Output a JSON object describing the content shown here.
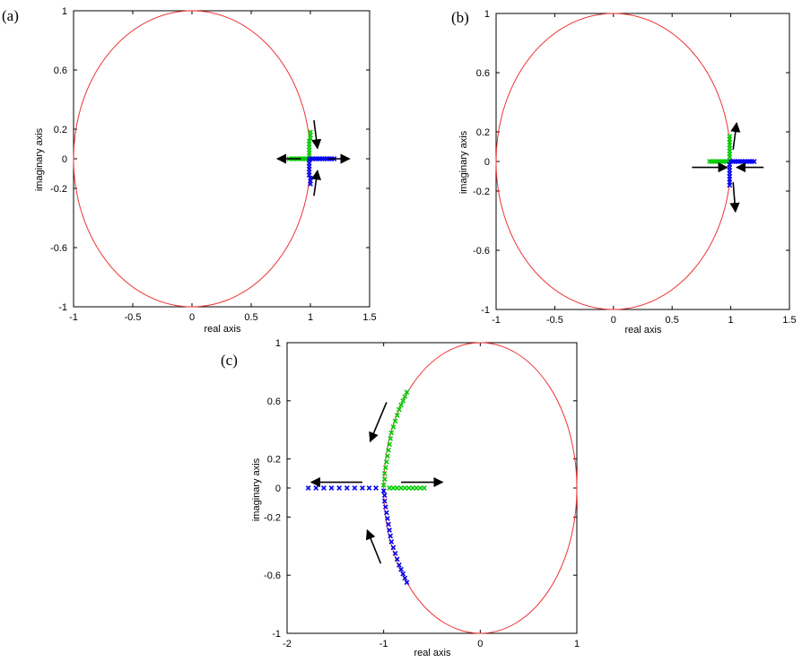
{
  "chart_data": [
    {
      "type": "scatter",
      "panel_label": "(a)",
      "xlabel": "real axis",
      "ylabel": "imaginary axis",
      "xlim": [
        -1,
        1.5
      ],
      "ylim": [
        -1,
        1
      ],
      "xticks": [
        -1,
        -0.5,
        0,
        0.5,
        1,
        1.5
      ],
      "xtick_labels": [
        "-1",
        "-0.5",
        "0",
        "0.5",
        "1",
        "1.5"
      ],
      "yticks": [
        1,
        0.6,
        0.2,
        0,
        -0.2,
        -0.6,
        -1
      ],
      "ytick_labels": [
        "1",
        "0.6",
        "0.2",
        "0",
        "-0.2",
        "-0.6",
        "-1"
      ],
      "unit_circle": true,
      "series": [
        {
          "color": "#00cc00",
          "marker": "x",
          "points": [
            [
              1.0,
              0.18
            ],
            [
              1.0,
              0.16
            ],
            [
              1.0,
              0.14
            ],
            [
              0.99,
              0.12
            ],
            [
              0.99,
              0.1
            ],
            [
              0.99,
              0.08
            ],
            [
              0.99,
              0.06
            ],
            [
              0.99,
              0.04
            ],
            [
              0.99,
              0.02
            ],
            [
              0.98,
              0.0
            ],
            [
              0.96,
              0.0
            ],
            [
              0.94,
              0.0
            ],
            [
              0.92,
              0.0
            ],
            [
              0.9,
              0.0
            ],
            [
              0.88,
              0.0
            ],
            [
              0.86,
              0.0
            ],
            [
              0.84,
              0.0
            ],
            [
              0.82,
              0.0
            ]
          ]
        },
        {
          "color": "#0000ee",
          "marker": "x",
          "points": [
            [
              1.0,
              -0.17
            ],
            [
              1.0,
              -0.15
            ],
            [
              1.0,
              -0.13
            ],
            [
              0.99,
              -0.11
            ],
            [
              0.99,
              -0.09
            ],
            [
              0.99,
              -0.07
            ],
            [
              0.99,
              -0.05
            ],
            [
              0.99,
              -0.03
            ],
            [
              0.99,
              -0.01
            ],
            [
              1.0,
              0.0
            ],
            [
              1.02,
              0.0
            ],
            [
              1.04,
              0.0
            ],
            [
              1.06,
              0.0
            ],
            [
              1.08,
              0.0
            ],
            [
              1.1,
              0.0
            ],
            [
              1.12,
              0.0
            ],
            [
              1.14,
              0.0
            ],
            [
              1.16,
              0.0
            ],
            [
              1.18,
              0.0
            ],
            [
              1.2,
              0.0
            ]
          ]
        }
      ],
      "arrows": [
        {
          "from": [
            1.03,
            0.26
          ],
          "to": [
            1.06,
            0.07
          ]
        },
        {
          "from": [
            1.03,
            -0.25
          ],
          "to": [
            1.06,
            -0.08
          ]
        },
        {
          "from": [
            0.92,
            0.0
          ],
          "to": [
            0.72,
            0.0
          ]
        },
        {
          "from": [
            1.15,
            0.0
          ],
          "to": [
            1.33,
            0.0
          ]
        }
      ]
    },
    {
      "type": "scatter",
      "panel_label": "(b)",
      "xlabel": "real axis",
      "ylabel": "imaginary axis",
      "xlim": [
        -1,
        1.5
      ],
      "ylim": [
        -1,
        1
      ],
      "xticks": [
        -1,
        -0.5,
        0,
        0.5,
        1,
        1.5
      ],
      "xtick_labels": [
        "-1",
        "-0.5",
        "0",
        "0.5",
        "1",
        "1.5"
      ],
      "yticks": [
        1,
        0.6,
        0.2,
        0,
        -0.2,
        -0.6,
        -1
      ],
      "ytick_labels": [
        "1",
        "0.6",
        "0.2",
        "0",
        "-0.2",
        "-0.6",
        "-1"
      ],
      "unit_circle": true,
      "series": [
        {
          "color": "#00cc00",
          "marker": "x",
          "points": [
            [
              0.99,
              0.17
            ],
            [
              0.99,
              0.15
            ],
            [
              0.99,
              0.13
            ],
            [
              0.99,
              0.11
            ],
            [
              0.99,
              0.09
            ],
            [
              0.99,
              0.07
            ],
            [
              0.99,
              0.05
            ],
            [
              0.99,
              0.03
            ],
            [
              0.98,
              0.0
            ],
            [
              0.96,
              0.0
            ],
            [
              0.94,
              0.0
            ],
            [
              0.92,
              0.0
            ],
            [
              0.9,
              0.0
            ],
            [
              0.88,
              0.0
            ],
            [
              0.86,
              0.0
            ],
            [
              0.84,
              0.0
            ],
            [
              0.82,
              0.0
            ]
          ]
        },
        {
          "color": "#0000ee",
          "marker": "x",
          "points": [
            [
              0.99,
              -0.16
            ],
            [
              0.99,
              -0.14
            ],
            [
              0.99,
              -0.12
            ],
            [
              0.99,
              -0.1
            ],
            [
              0.99,
              -0.08
            ],
            [
              0.99,
              -0.06
            ],
            [
              0.99,
              -0.04
            ],
            [
              0.99,
              -0.02
            ],
            [
              1.0,
              0.0
            ],
            [
              1.02,
              0.0
            ],
            [
              1.04,
              0.0
            ],
            [
              1.06,
              0.0
            ],
            [
              1.08,
              0.0
            ],
            [
              1.1,
              0.0
            ],
            [
              1.12,
              0.0
            ],
            [
              1.14,
              0.0
            ],
            [
              1.16,
              0.0
            ],
            [
              1.18,
              0.0
            ],
            [
              1.2,
              0.0
            ]
          ]
        }
      ],
      "arrows": [
        {
          "from": [
            1.02,
            0.08
          ],
          "to": [
            1.05,
            0.26
          ]
        },
        {
          "from": [
            1.02,
            -0.14
          ],
          "to": [
            1.04,
            -0.34
          ]
        },
        {
          "from": [
            0.67,
            -0.04
          ],
          "to": [
            0.97,
            -0.04
          ]
        },
        {
          "from": [
            1.28,
            -0.04
          ],
          "to": [
            1.05,
            -0.04
          ]
        }
      ]
    },
    {
      "type": "scatter",
      "panel_label": "(c)",
      "xlabel": "real axis",
      "ylabel": "imaginary axis",
      "xlim": [
        -2,
        1
      ],
      "ylim": [
        -1,
        1
      ],
      "xticks": [
        -2,
        -1,
        0,
        1
      ],
      "xtick_labels": [
        "-2",
        "-1",
        "0",
        "1"
      ],
      "yticks": [
        1,
        0.6,
        0.2,
        0,
        -0.2,
        -0.6,
        -1
      ],
      "ytick_labels": [
        "1",
        "0.6",
        "0.2",
        "0",
        "-0.2",
        "-0.6",
        "-1"
      ],
      "unit_circle": true,
      "series": [
        {
          "color": "#00cc00",
          "marker": "x",
          "points": [
            [
              -0.76,
              0.66
            ],
            [
              -0.78,
              0.63
            ],
            [
              -0.8,
              0.6
            ],
            [
              -0.82,
              0.57
            ],
            [
              -0.84,
              0.54
            ],
            [
              -0.86,
              0.5
            ],
            [
              -0.88,
              0.46
            ],
            [
              -0.9,
              0.42
            ],
            [
              -0.92,
              0.38
            ],
            [
              -0.93,
              0.34
            ],
            [
              -0.94,
              0.3
            ],
            [
              -0.95,
              0.26
            ],
            [
              -0.96,
              0.22
            ],
            [
              -0.97,
              0.18
            ],
            [
              -0.98,
              0.14
            ],
            [
              -0.99,
              0.1
            ],
            [
              -0.99,
              0.06
            ],
            [
              -1.0,
              0.02
            ],
            [
              -0.94,
              0.0
            ],
            [
              -0.9,
              0.0
            ],
            [
              -0.86,
              0.0
            ],
            [
              -0.82,
              0.0
            ],
            [
              -0.78,
              0.0
            ],
            [
              -0.74,
              0.0
            ],
            [
              -0.7,
              0.0
            ],
            [
              -0.66,
              0.0
            ],
            [
              -0.62,
              0.0
            ],
            [
              -0.58,
              0.0
            ]
          ]
        },
        {
          "color": "#0000ee",
          "marker": "x",
          "points": [
            [
              -0.76,
              -0.65
            ],
            [
              -0.78,
              -0.62
            ],
            [
              -0.8,
              -0.59
            ],
            [
              -0.82,
              -0.56
            ],
            [
              -0.84,
              -0.53
            ],
            [
              -0.86,
              -0.49
            ],
            [
              -0.88,
              -0.45
            ],
            [
              -0.9,
              -0.41
            ],
            [
              -0.92,
              -0.37
            ],
            [
              -0.93,
              -0.33
            ],
            [
              -0.94,
              -0.29
            ],
            [
              -0.95,
              -0.25
            ],
            [
              -0.96,
              -0.21
            ],
            [
              -0.97,
              -0.17
            ],
            [
              -0.98,
              -0.13
            ],
            [
              -0.99,
              -0.09
            ],
            [
              -0.99,
              -0.05
            ],
            [
              -1.0,
              -0.02
            ],
            [
              -1.08,
              0.0
            ],
            [
              -1.15,
              0.0
            ],
            [
              -1.22,
              0.0
            ],
            [
              -1.3,
              0.0
            ],
            [
              -1.38,
              0.0
            ],
            [
              -1.46,
              0.0
            ],
            [
              -1.54,
              0.0
            ],
            [
              -1.62,
              0.0
            ],
            [
              -1.7,
              0.0
            ],
            [
              -1.78,
              0.0
            ]
          ]
        }
      ],
      "arrows": [
        {
          "from": [
            -0.97,
            0.59
          ],
          "to": [
            -1.14,
            0.32
          ]
        },
        {
          "from": [
            -1.03,
            -0.52
          ],
          "to": [
            -1.17,
            -0.29
          ]
        },
        {
          "from": [
            -1.22,
            0.04
          ],
          "to": [
            -1.75,
            0.04
          ]
        },
        {
          "from": [
            -0.82,
            0.04
          ],
          "to": [
            -0.39,
            0.04
          ]
        }
      ]
    }
  ]
}
